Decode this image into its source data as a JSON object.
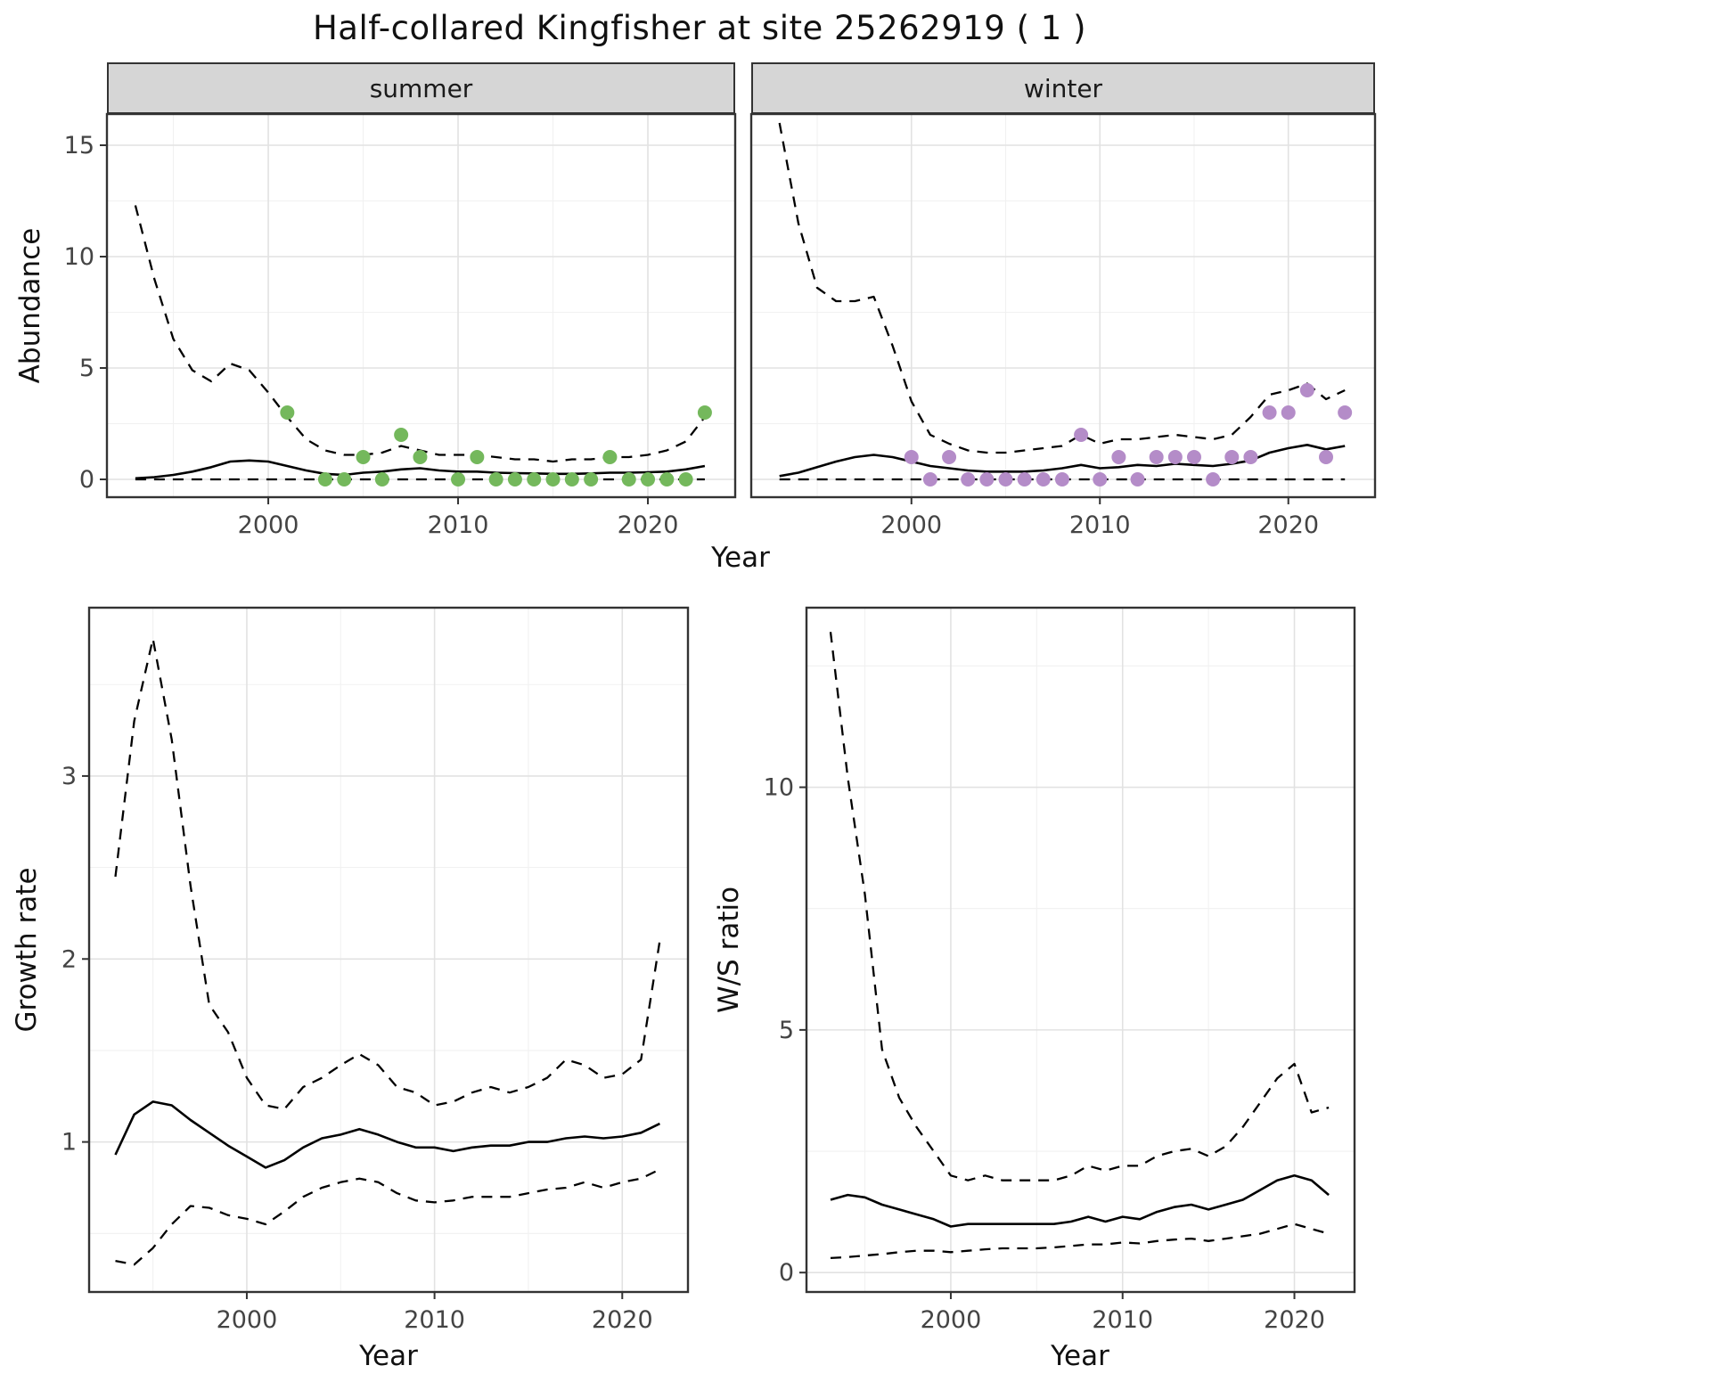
{
  "title": "Half-collared Kingfisher at site 25262919 ( 1 )",
  "labels": {
    "abundance": "Abundance",
    "year": "Year",
    "growth_rate": "Growth rate",
    "ws_ratio": "W/S ratio"
  },
  "colors": {
    "summer_points": "#74B85C",
    "winter_points": "#B48CC8",
    "line": "#000000",
    "grid_major": "#e2e2e2",
    "grid_minor": "#f1f1f1",
    "strip_bg": "#d6d6d6",
    "panel_border": "#333333",
    "tick_text": "#444444"
  },
  "chart_data": [
    {
      "id": "abundance-summer",
      "type": "line",
      "facet_label": "summer",
      "xlabel": "Year",
      "ylabel": "Abundance",
      "x": [
        1993,
        1994,
        1995,
        1996,
        1997,
        1998,
        1999,
        2000,
        2001,
        2002,
        2003,
        2004,
        2005,
        2006,
        2007,
        2008,
        2009,
        2010,
        2011,
        2012,
        2013,
        2014,
        2015,
        2016,
        2017,
        2018,
        2019,
        2020,
        2021,
        2022,
        2023
      ],
      "series": [
        {
          "name": "upper_ci",
          "style": "dashed",
          "values": [
            12.3,
            9.0,
            6.3,
            4.9,
            4.4,
            5.2,
            4.9,
            3.9,
            2.8,
            1.8,
            1.3,
            1.1,
            1.1,
            1.2,
            1.5,
            1.3,
            1.1,
            1.1,
            1.1,
            1.0,
            0.9,
            0.9,
            0.8,
            0.9,
            0.9,
            1.0,
            1.0,
            1.1,
            1.3,
            1.7,
            2.8
          ]
        },
        {
          "name": "median",
          "style": "solid",
          "values": [
            0.05,
            0.1,
            0.2,
            0.35,
            0.55,
            0.8,
            0.85,
            0.8,
            0.6,
            0.4,
            0.25,
            0.2,
            0.3,
            0.35,
            0.45,
            0.5,
            0.4,
            0.35,
            0.35,
            0.3,
            0.28,
            0.27,
            0.25,
            0.25,
            0.27,
            0.3,
            0.3,
            0.32,
            0.35,
            0.45,
            0.6
          ]
        },
        {
          "name": "lower_ci",
          "style": "dashed",
          "values": [
            0,
            0,
            0,
            0,
            0,
            0,
            0,
            0,
            0,
            0,
            0,
            0,
            0,
            0,
            0,
            0,
            0,
            0,
            0,
            0,
            0,
            0,
            0,
            0,
            0,
            0,
            0,
            0,
            0,
            0,
            0
          ]
        }
      ],
      "points": {
        "name": "observed-counts",
        "color_key": "summer_points",
        "x": [
          2001,
          2003,
          2004,
          2005,
          2006,
          2007,
          2008,
          2010,
          2011,
          2012,
          2013,
          2014,
          2015,
          2016,
          2017,
          2018,
          2019,
          2020,
          2021,
          2022,
          2023
        ],
        "y": [
          3,
          0,
          0,
          1,
          0,
          2,
          1,
          0,
          1,
          0,
          0,
          0,
          0,
          0,
          0,
          1,
          0,
          0,
          0,
          0,
          3
        ]
      },
      "xlim": [
        1991.5,
        2024.6
      ],
      "ylim": [
        -0.8,
        16.4
      ],
      "xticks": [
        2000,
        2010,
        2020
      ],
      "yticks": [
        0,
        5,
        10,
        15
      ],
      "xminor": [
        1995,
        2005,
        2015
      ],
      "yminor": [
        2.5,
        7.5,
        12.5
      ],
      "show_yticklabels": true
    },
    {
      "id": "abundance-winter",
      "type": "line",
      "facet_label": "winter",
      "xlabel": "Year",
      "ylabel": "Abundance",
      "x": [
        1993,
        1994,
        1995,
        1996,
        1997,
        1998,
        1999,
        2000,
        2001,
        2002,
        2003,
        2004,
        2005,
        2006,
        2007,
        2008,
        2009,
        2010,
        2011,
        2012,
        2013,
        2014,
        2015,
        2016,
        2017,
        2018,
        2019,
        2020,
        2021,
        2022,
        2023
      ],
      "series": [
        {
          "name": "upper_ci",
          "style": "dashed",
          "values": [
            16.0,
            11.5,
            8.6,
            8.0,
            8.0,
            8.2,
            6.0,
            3.5,
            2.0,
            1.6,
            1.3,
            1.2,
            1.2,
            1.3,
            1.4,
            1.5,
            2.0,
            1.6,
            1.8,
            1.8,
            1.9,
            2.0,
            1.9,
            1.8,
            2.0,
            2.8,
            3.8,
            4.0,
            4.3,
            3.6,
            4.0
          ]
        },
        {
          "name": "median",
          "style": "solid",
          "values": [
            0.15,
            0.3,
            0.55,
            0.8,
            1.0,
            1.1,
            1.0,
            0.8,
            0.6,
            0.5,
            0.4,
            0.35,
            0.35,
            0.35,
            0.4,
            0.5,
            0.65,
            0.5,
            0.55,
            0.65,
            0.6,
            0.7,
            0.65,
            0.6,
            0.7,
            0.85,
            1.2,
            1.4,
            1.55,
            1.35,
            1.5
          ]
        },
        {
          "name": "lower_ci",
          "style": "dashed",
          "values": [
            0,
            0,
            0,
            0,
            0,
            0,
            0,
            0,
            0,
            0,
            0,
            0,
            0,
            0,
            0,
            0,
            0,
            0,
            0,
            0,
            0,
            0,
            0,
            0,
            0,
            0,
            0,
            0,
            0,
            0,
            0
          ]
        }
      ],
      "points": {
        "name": "observed-counts",
        "color_key": "winter_points",
        "x": [
          2000,
          2001,
          2002,
          2003,
          2004,
          2005,
          2006,
          2007,
          2008,
          2009,
          2010,
          2011,
          2012,
          2013,
          2014,
          2015,
          2016,
          2017,
          2018,
          2019,
          2020,
          2021,
          2022,
          2023
        ],
        "y": [
          1,
          0,
          1,
          0,
          0,
          0,
          0,
          0,
          0,
          2,
          0,
          1,
          0,
          1,
          1,
          1,
          0,
          1,
          1,
          3,
          3,
          4,
          1,
          3
        ]
      },
      "xlim": [
        1991.5,
        2024.6
      ],
      "ylim": [
        -0.8,
        16.4
      ],
      "xticks": [
        2000,
        2010,
        2020
      ],
      "yticks": [
        0,
        5,
        10,
        15
      ],
      "xminor": [
        1995,
        2005,
        2015
      ],
      "yminor": [
        2.5,
        7.5,
        12.5
      ],
      "show_yticklabels": false
    },
    {
      "id": "growth-rate",
      "type": "line",
      "facet_label": "",
      "xlabel": "Year",
      "ylabel": "Growth rate",
      "x": [
        1993,
        1994,
        1995,
        1996,
        1997,
        1998,
        1999,
        2000,
        2001,
        2002,
        2003,
        2004,
        2005,
        2006,
        2007,
        2008,
        2009,
        2010,
        2011,
        2012,
        2013,
        2014,
        2015,
        2016,
        2017,
        2018,
        2019,
        2020,
        2021,
        2022
      ],
      "series": [
        {
          "name": "upper_ci",
          "style": "dashed",
          "values": [
            2.45,
            3.3,
            3.75,
            3.2,
            2.4,
            1.75,
            1.6,
            1.35,
            1.2,
            1.18,
            1.3,
            1.35,
            1.42,
            1.48,
            1.42,
            1.3,
            1.27,
            1.2,
            1.22,
            1.27,
            1.3,
            1.27,
            1.3,
            1.35,
            1.45,
            1.42,
            1.35,
            1.37,
            1.45,
            2.1
          ]
        },
        {
          "name": "median",
          "style": "solid",
          "values": [
            0.93,
            1.15,
            1.22,
            1.2,
            1.12,
            1.05,
            0.98,
            0.92,
            0.86,
            0.9,
            0.97,
            1.02,
            1.04,
            1.07,
            1.04,
            1.0,
            0.97,
            0.97,
            0.95,
            0.97,
            0.98,
            0.98,
            1.0,
            1.0,
            1.02,
            1.03,
            1.02,
            1.03,
            1.05,
            1.1
          ]
        },
        {
          "name": "lower_ci",
          "style": "dashed",
          "values": [
            0.35,
            0.33,
            0.42,
            0.55,
            0.65,
            0.64,
            0.6,
            0.58,
            0.55,
            0.62,
            0.7,
            0.75,
            0.78,
            0.8,
            0.78,
            0.72,
            0.68,
            0.67,
            0.68,
            0.7,
            0.7,
            0.7,
            0.72,
            0.74,
            0.75,
            0.78,
            0.75,
            0.78,
            0.8,
            0.85
          ]
        }
      ],
      "xlim": [
        1991.6,
        2023.5
      ],
      "ylim": [
        0.18,
        3.92
      ],
      "xticks": [
        2000,
        2010,
        2020
      ],
      "yticks": [
        1,
        2,
        3
      ],
      "xminor": [
        1995,
        2005,
        2015
      ],
      "yminor": [
        0.5,
        1.5,
        2.5,
        3.5
      ],
      "show_yticklabels": true
    },
    {
      "id": "ws-ratio",
      "type": "line",
      "facet_label": "",
      "xlabel": "Year",
      "ylabel": "W/S ratio",
      "x": [
        1993,
        1994,
        1995,
        1996,
        1997,
        1998,
        1999,
        2000,
        2001,
        2002,
        2003,
        2004,
        2005,
        2006,
        2007,
        2008,
        2009,
        2010,
        2011,
        2012,
        2013,
        2014,
        2015,
        2016,
        2017,
        2018,
        2019,
        2020,
        2021,
        2022
      ],
      "series": [
        {
          "name": "upper_ci",
          "style": "dashed",
          "values": [
            13.2,
            10.2,
            7.8,
            4.6,
            3.6,
            3.0,
            2.5,
            2.0,
            1.9,
            2.0,
            1.9,
            1.9,
            1.9,
            1.9,
            2.0,
            2.2,
            2.1,
            2.2,
            2.2,
            2.4,
            2.5,
            2.55,
            2.4,
            2.6,
            3.0,
            3.5,
            4.0,
            4.3,
            3.3,
            3.4
          ]
        },
        {
          "name": "median",
          "style": "solid",
          "values": [
            1.5,
            1.6,
            1.55,
            1.4,
            1.3,
            1.2,
            1.1,
            0.95,
            1.0,
            1.0,
            1.0,
            1.0,
            1.0,
            1.0,
            1.05,
            1.15,
            1.05,
            1.15,
            1.1,
            1.25,
            1.35,
            1.4,
            1.3,
            1.4,
            1.5,
            1.7,
            1.9,
            2.0,
            1.9,
            1.6
          ]
        },
        {
          "name": "lower_ci",
          "style": "dashed",
          "values": [
            0.3,
            0.32,
            0.35,
            0.38,
            0.42,
            0.45,
            0.45,
            0.42,
            0.45,
            0.48,
            0.5,
            0.5,
            0.5,
            0.52,
            0.55,
            0.58,
            0.58,
            0.62,
            0.6,
            0.65,
            0.68,
            0.7,
            0.65,
            0.7,
            0.75,
            0.8,
            0.9,
            1.0,
            0.9,
            0.8
          ]
        }
      ],
      "xlim": [
        1991.6,
        2023.5
      ],
      "ylim": [
        -0.4,
        13.7
      ],
      "xticks": [
        2000,
        2010,
        2020
      ],
      "yticks": [
        0,
        5,
        10
      ],
      "xminor": [
        1995,
        2005,
        2015
      ],
      "yminor": [
        2.5,
        7.5,
        12.5
      ],
      "show_yticklabels": true
    }
  ]
}
